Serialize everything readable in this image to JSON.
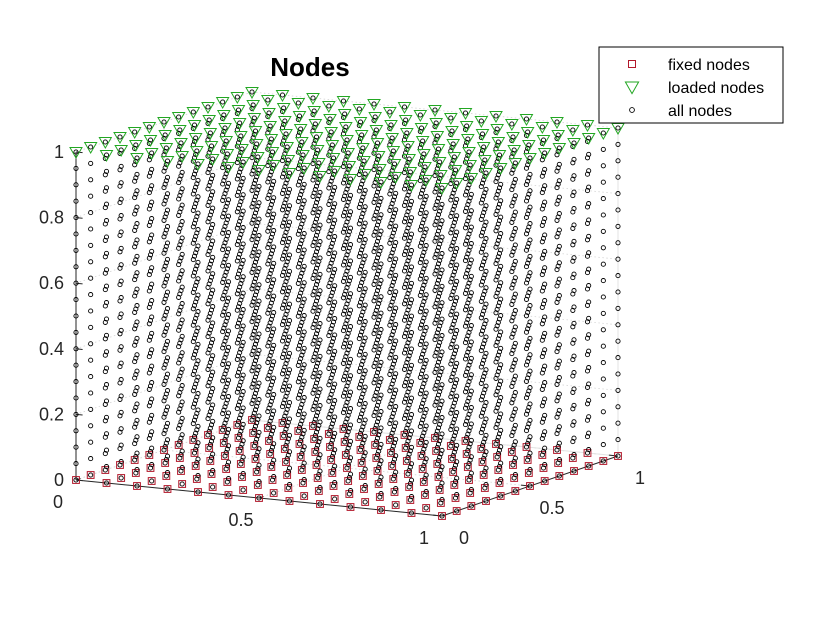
{
  "chart_data": {
    "type": "scatter",
    "title": "Nodes",
    "xlabel": "",
    "ylabel": "",
    "zlabel": "",
    "grid": true,
    "legend_position": "top-right",
    "x_ticks": [
      "0",
      "0.5",
      "1"
    ],
    "y_ticks": [
      "0",
      "0.5",
      "1"
    ],
    "z_ticks": [
      "0",
      "0.2",
      "0.4",
      "0.6",
      "0.8",
      "1"
    ],
    "xlim": [
      0,
      1
    ],
    "ylim": [
      0,
      1
    ],
    "zlim": [
      0,
      1
    ],
    "grid_divisions": {
      "x": 12,
      "y": 12,
      "z": 20
    },
    "series": [
      {
        "name": "fixed nodes",
        "marker": "square",
        "color": "#b2182b",
        "where": "z = 0",
        "values": "every grid node in the plane z = 0"
      },
      {
        "name": "loaded nodes",
        "marker": "triangle-down",
        "color": "#22a722",
        "where": "z = 1",
        "values": "every grid node in the plane z = 1"
      },
      {
        "name": "all nodes",
        "marker": "circle",
        "color": "#000000",
        "where": "all",
        "values": "every grid node of the unit cube"
      }
    ]
  }
}
